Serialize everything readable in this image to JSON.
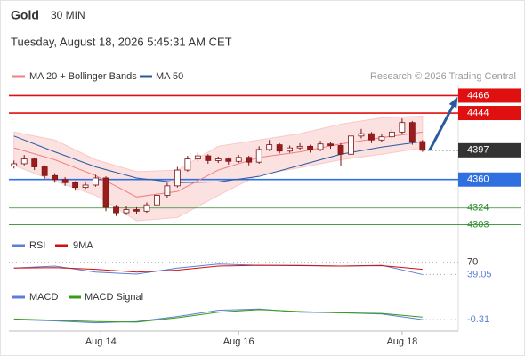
{
  "header": {
    "title": "Gold",
    "timeframe": "30 MIN",
    "date": "Tuesday, August 18, 2026 5:45:31 AM CET",
    "source": "Research © 2026 Trading Central"
  },
  "chart_data": {
    "type": "candlestick",
    "up_color": "#ffffff",
    "down_color": "#9b1c1c",
    "xlim": [
      -0.5,
      43.5
    ],
    "ylim": [
      4290,
      4480
    ],
    "xticks": [
      {
        "value": 8.5,
        "label": "Aug 14"
      },
      {
        "value": 22,
        "label": "Aug 16"
      },
      {
        "value": 38,
        "label": "Aug 18"
      }
    ],
    "candles": [
      [
        4377,
        4384,
        4374,
        4380
      ],
      [
        4380,
        4391,
        4378,
        4386
      ],
      [
        4386,
        4388,
        4372,
        4376
      ],
      [
        4376,
        4378,
        4361,
        4365
      ],
      [
        4365,
        4368,
        4356,
        4360
      ],
      [
        4360,
        4363,
        4352,
        4356
      ],
      [
        4356,
        4358,
        4346,
        4350
      ],
      [
        4350,
        4357,
        4348,
        4353
      ],
      [
        4353,
        4366,
        4351,
        4362
      ],
      [
        4362,
        4364,
        4320,
        4325
      ],
      [
        4325,
        4328,
        4314,
        4318
      ],
      [
        4318,
        4326,
        4315,
        4322
      ],
      [
        4322,
        4325,
        4316,
        4320
      ],
      [
        4320,
        4331,
        4318,
        4328
      ],
      [
        4328,
        4344,
        4326,
        4340
      ],
      [
        4340,
        4356,
        4337,
        4352
      ],
      [
        4352,
        4376,
        4350,
        4372
      ],
      [
        4372,
        4390,
        4370,
        4386
      ],
      [
        4386,
        4394,
        4383,
        4390
      ],
      [
        4390,
        4392,
        4380,
        4384
      ],
      [
        4384,
        4389,
        4381,
        4386
      ],
      [
        4386,
        4388,
        4379,
        4383
      ],
      [
        4383,
        4391,
        4381,
        4388
      ],
      [
        4388,
        4390,
        4378,
        4382
      ],
      [
        4382,
        4402,
        4380,
        4398
      ],
      [
        4398,
        4410,
        4396,
        4404
      ],
      [
        4404,
        4406,
        4393,
        4396
      ],
      [
        4396,
        4403,
        4394,
        4400
      ],
      [
        4400,
        4406,
        4397,
        4402
      ],
      [
        4402,
        4404,
        4394,
        4398
      ],
      [
        4398,
        4409,
        4396,
        4405
      ],
      [
        4405,
        4408,
        4399,
        4403
      ],
      [
        4403,
        4406,
        4377,
        4392
      ],
      [
        4392,
        4420,
        4390,
        4415
      ],
      [
        4415,
        4424,
        4412,
        4418
      ],
      [
        4418,
        4420,
        4406,
        4410
      ],
      [
        4410,
        4417,
        4408,
        4414
      ],
      [
        4414,
        4424,
        4412,
        4420
      ],
      [
        4420,
        4437,
        4418,
        4432
      ],
      [
        4432,
        4434,
        4404,
        4408
      ],
      [
        4408,
        4410,
        4395,
        4397
      ]
    ],
    "overlay_x": [
      0,
      4,
      8,
      12,
      16,
      20,
      24,
      28,
      32,
      36,
      40
    ],
    "overlays": [
      {
        "name": "MA 20 + Bollinger Bands",
        "color": "#f08080",
        "values": [
          4400,
          4385,
          4365,
          4338,
          4345,
          4372,
          4388,
          4395,
          4405,
          4413,
          4420
        ]
      },
      {
        "name": "MA 50",
        "color": "#2a5a9e",
        "values": [
          4415,
          4395,
          4376,
          4362,
          4356,
          4357,
          4364,
          4378,
          4392,
          4401,
          4408
        ]
      }
    ],
    "band": {
      "color": "#f9c9c9",
      "upper": [
        4420,
        4410,
        4385,
        4370,
        4372,
        4402,
        4410,
        4418,
        4430,
        4438,
        4440
      ],
      "lower": [
        4378,
        4358,
        4340,
        4308,
        4312,
        4340,
        4366,
        4375,
        4385,
        4392,
        4400
      ]
    },
    "levels": [
      {
        "value": 4466,
        "color": "#e01010",
        "kind": "box"
      },
      {
        "value": 4444,
        "color": "#e01010",
        "kind": "box"
      },
      {
        "value": 4397,
        "color": "#333333",
        "kind": "current"
      },
      {
        "value": 4360,
        "color": "#2f6fe0",
        "kind": "box"
      },
      {
        "value": 4324,
        "color": "#2e8b2e",
        "kind": "text"
      },
      {
        "value": 4303,
        "color": "#2e8b2e",
        "kind": "text"
      }
    ],
    "arrow_color": "#2a5a9e",
    "rsi": {
      "ylim": [
        0,
        100
      ],
      "yticks": [
        70
      ],
      "series": [
        {
          "name": "RSI",
          "color": "#5b7fd6",
          "values": [
            55,
            60,
            45,
            40,
            55,
            65,
            62,
            62,
            60,
            62,
            39.05
          ]
        },
        {
          "name": "9MA",
          "color": "#d01010",
          "values": [
            55,
            56,
            52,
            45,
            50,
            60,
            62,
            61,
            60,
            61,
            52
          ]
        }
      ]
    },
    "macd": {
      "ylim": [
        -2,
        2
      ],
      "series": [
        {
          "name": "MACD",
          "color": "#5b7fd6",
          "values": [
            -0.3,
            -0.5,
            -0.8,
            -0.6,
            0.2,
            1.2,
            1.4,
            0.9,
            0.8,
            0.6,
            -0.31
          ]
        },
        {
          "name": "MACD Signal",
          "color": "#3a9a1a",
          "values": [
            -0.2,
            -0.4,
            -0.6,
            -0.7,
            0,
            0.9,
            1.3,
            1.0,
            0.8,
            0.7,
            0.1
          ]
        }
      ]
    }
  }
}
